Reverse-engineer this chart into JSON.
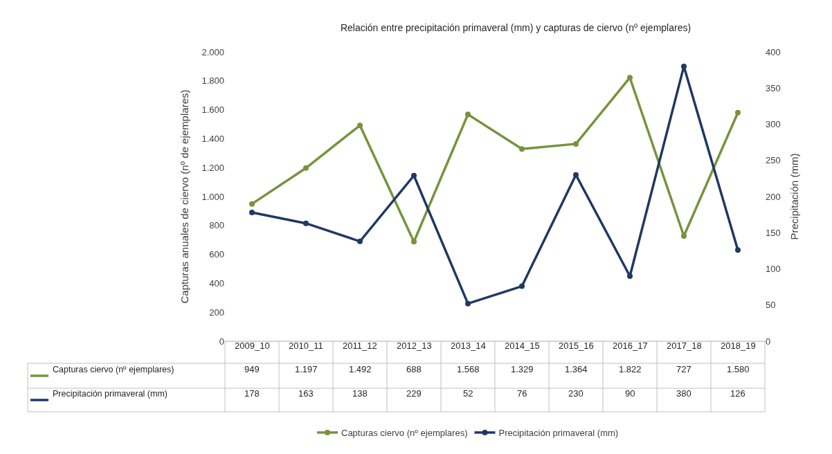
{
  "chart_data": {
    "type": "line",
    "title": "Relación entre precipitación primaveral (mm) y capturas de ciervo (nº ejemplares)",
    "ylabel": "Capturas anuales de ciervo (nº de ejemplares)",
    "y2label": "Precipitación (mm)",
    "categories": [
      "2009_10",
      "2010_11",
      "2011_12",
      "2012_13",
      "2013_14",
      "2014_15",
      "2015_16",
      "2016_17",
      "2017_18",
      "2018_19"
    ],
    "series": [
      {
        "name": "Capturas ciervo (nº ejemplares)",
        "color": "#77933c",
        "values": [
          949,
          1197,
          1492,
          688,
          1568,
          1329,
          1364,
          1822,
          727,
          1580
        ],
        "value_labels": [
          "949",
          "1.197",
          "1.492",
          "688",
          "1.568",
          "1.329",
          "1.364",
          "1.822",
          "727",
          "1.580"
        ]
      },
      {
        "name": "Precipitación primaveral (mm)",
        "color": "#1f3864",
        "axis": "y2",
        "values": [
          178,
          163,
          138,
          229,
          52,
          76,
          230,
          90,
          380,
          126
        ],
        "value_labels": [
          "178",
          "163",
          "138",
          "229",
          "52",
          "76",
          "230",
          "90",
          "380",
          "126"
        ]
      }
    ],
    "ylim": [
      0,
      2000
    ],
    "yticks": [
      0,
      200,
      400,
      600,
      800,
      {
        "value": 1000,
        "label": "1.000"
      },
      {
        "value": 1200,
        "label": "1.200"
      },
      {
        "value": 1400,
        "label": "1.400"
      },
      {
        "value": 1600,
        "label": "1.600"
      },
      {
        "value": 1800,
        "label": "1.800"
      },
      {
        "value": 2000,
        "label": "2.000"
      }
    ],
    "y2lim": [
      0,
      400
    ],
    "y2ticks": [
      0,
      50,
      100,
      150,
      200,
      250,
      300,
      350,
      400
    ],
    "marker": "circle",
    "line_style": "solid",
    "legend": "bottom"
  }
}
